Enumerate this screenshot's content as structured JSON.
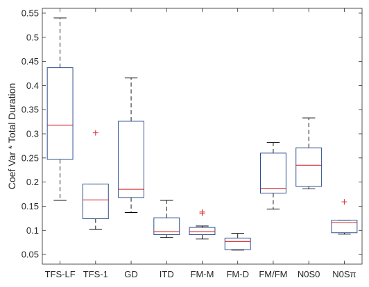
{
  "chart_data": {
    "type": "box",
    "title": "",
    "xlabel": "",
    "ylabel": "Coef Var * Total Duration",
    "ylim": [
      0.03,
      0.56
    ],
    "yticks": [
      0.05,
      0.1,
      0.15,
      0.2,
      0.25,
      0.3,
      0.35,
      0.4,
      0.45,
      0.5,
      0.55
    ],
    "ytick_labels": [
      "0.05",
      "0.1",
      "0.15",
      "0.2",
      "0.25",
      "0.3",
      "0.35",
      "0.4",
      "0.45",
      "0.5",
      "0.55"
    ],
    "grid": false,
    "categories": [
      {
        "main": "TFS-LF",
        "sub": ""
      },
      {
        "main": "TFS-1",
        "sub": ""
      },
      {
        "main": "GD",
        "sub": ""
      },
      {
        "main": "ITD",
        "sub": ""
      },
      {
        "main": "FM-M",
        "sub": ""
      },
      {
        "main": "FM-D",
        "sub": ""
      },
      {
        "main": "FM/FM",
        "sub": ""
      },
      {
        "main": "N0S0",
        "sub": ""
      },
      {
        "main": "N0Sπ",
        "sub": ""
      }
    ],
    "boxes": [
      {
        "q1": 0.247,
        "median": 0.318,
        "q3": 0.437,
        "whisker_low": 0.162,
        "whisker_high": 0.54,
        "outliers": []
      },
      {
        "q1": 0.124,
        "median": 0.163,
        "q3": 0.196,
        "whisker_low": 0.102,
        "whisker_high": 0.196,
        "outliers": [
          0.302
        ]
      },
      {
        "q1": 0.168,
        "median": 0.185,
        "q3": 0.326,
        "whisker_low": 0.137,
        "whisker_high": 0.416,
        "outliers": []
      },
      {
        "q1": 0.091,
        "median": 0.097,
        "q3": 0.126,
        "whisker_low": 0.085,
        "whisker_high": 0.162,
        "outliers": []
      },
      {
        "q1": 0.091,
        "median": 0.097,
        "q3": 0.106,
        "whisker_low": 0.082,
        "whisker_high": 0.109,
        "outliers": [
          0.135,
          0.138
        ]
      },
      {
        "q1": 0.06,
        "median": 0.077,
        "q3": 0.084,
        "whisker_low": 0.059,
        "whisker_high": 0.094,
        "outliers": []
      },
      {
        "q1": 0.177,
        "median": 0.187,
        "q3": 0.26,
        "whisker_low": 0.144,
        "whisker_high": 0.282,
        "outliers": []
      },
      {
        "q1": 0.191,
        "median": 0.235,
        "q3": 0.271,
        "whisker_low": 0.186,
        "whisker_high": 0.333,
        "outliers": []
      },
      {
        "q1": 0.095,
        "median": 0.116,
        "q3": 0.121,
        "whisker_low": 0.092,
        "whisker_high": 0.121,
        "outliers": [
          0.159
        ]
      }
    ],
    "colors": {
      "box": "#2f4f8f",
      "median": "#d62728",
      "whisker": "#000000",
      "outlier": "#d62728",
      "axis": "#262626"
    }
  }
}
